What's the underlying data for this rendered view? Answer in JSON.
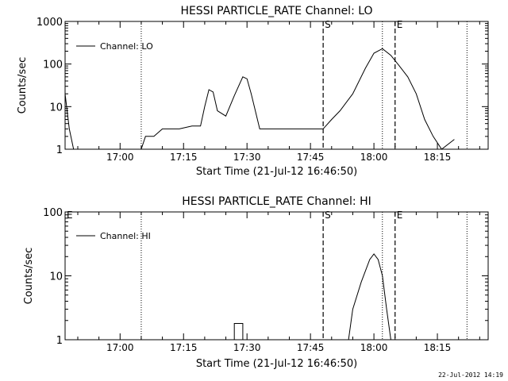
{
  "timestamp": "22-Jul-2012 14:19",
  "chart_data": [
    {
      "type": "line",
      "title": "HESSI PARTICLE_RATE Channel: LO",
      "xlabel": "Start Time (21-Jul-12 16:46:50)",
      "ylabel": "Counts/sec",
      "y_scale": "log",
      "ylim": [
        1,
        1000
      ],
      "y_ticks": [
        {
          "v": 1,
          "label": "1"
        },
        {
          "v": 10,
          "label": "10"
        },
        {
          "v": 100,
          "label": "100"
        },
        {
          "v": 1000,
          "label": "1000"
        }
      ],
      "xlim": [
        "16:47",
        "18:27"
      ],
      "x_ticks": [
        "17:00",
        "17:15",
        "17:30",
        "17:45",
        "18:00",
        "18:15"
      ],
      "legend": {
        "label": "Channel: LO",
        "placement": "top-left"
      },
      "markers": [
        {
          "time": "17:48",
          "label": "S",
          "style": "dashed"
        },
        {
          "time": "18:05",
          "label": "E",
          "style": "dashed"
        },
        {
          "time": "17:05",
          "label": "",
          "style": "dotted"
        },
        {
          "time": "18:02",
          "label": "",
          "style": "dotted"
        },
        {
          "time": "18:22",
          "label": "",
          "style": "dotted"
        }
      ],
      "series": [
        {
          "name": "Channel: LO",
          "points": [
            [
              "16:47",
              20
            ],
            [
              "16:48",
              3
            ],
            [
              "16:49",
              1
            ],
            [
              "16:50",
              1
            ],
            [
              "16:52",
              1
            ],
            [
              "16:55",
              1
            ],
            [
              "16:57",
              1
            ],
            [
              "17:05",
              1
            ],
            [
              "17:06",
              2
            ],
            [
              "17:08",
              2
            ],
            [
              "17:10",
              3
            ],
            [
              "17:14",
              3
            ],
            [
              "17:17",
              3.5
            ],
            [
              "17:19",
              3.5
            ],
            [
              "17:20",
              10
            ],
            [
              "17:21",
              25
            ],
            [
              "17:22",
              22
            ],
            [
              "17:23",
              8
            ],
            [
              "17:25",
              6
            ],
            [
              "17:27",
              18
            ],
            [
              "17:29",
              50
            ],
            [
              "17:30",
              45
            ],
            [
              "17:31",
              20
            ],
            [
              "17:33",
              3
            ],
            [
              "17:36",
              3
            ],
            [
              "17:40",
              3
            ],
            [
              "17:44",
              3
            ],
            [
              "17:48",
              3
            ],
            [
              "17:50",
              5
            ],
            [
              "17:52",
              8
            ],
            [
              "17:55",
              20
            ],
            [
              "17:58",
              80
            ],
            [
              "18:00",
              180
            ],
            [
              "18:02",
              230
            ],
            [
              "18:04",
              160
            ],
            [
              "18:06",
              90
            ],
            [
              "18:08",
              50
            ],
            [
              "18:10",
              20
            ],
            [
              "18:12",
              5
            ],
            [
              "18:14",
              2
            ],
            [
              "18:16",
              1
            ],
            [
              "18:19",
              1.7
            ]
          ]
        }
      ]
    },
    {
      "type": "line",
      "title": "HESSI PARTICLE_RATE Channel: HI",
      "xlabel": "Start Time (21-Jul-12 16:46:50)",
      "ylabel": "Counts/sec",
      "y_scale": "log",
      "ylim": [
        1,
        100
      ],
      "y_ticks": [
        {
          "v": 1,
          "label": "1"
        },
        {
          "v": 10,
          "label": "10"
        },
        {
          "v": 100,
          "label": "100"
        }
      ],
      "xlim": [
        "16:47",
        "18:27"
      ],
      "x_ticks": [
        "17:00",
        "17:15",
        "17:30",
        "17:45",
        "18:00",
        "18:15"
      ],
      "legend": {
        "label": "Channel: HI",
        "placement": "top-left"
      },
      "markers": [
        {
          "time": "16:47",
          "label": "E",
          "style": "none"
        },
        {
          "time": "17:48",
          "label": "S",
          "style": "dashed"
        },
        {
          "time": "18:05",
          "label": "E",
          "style": "dashed"
        },
        {
          "time": "17:05",
          "label": "",
          "style": "dotted"
        },
        {
          "time": "18:02",
          "label": "",
          "style": "dotted"
        },
        {
          "time": "18:22",
          "label": "",
          "style": "dotted"
        }
      ],
      "series": [
        {
          "name": "Channel: HI",
          "points": [
            [
              "17:27",
              1
            ],
            [
              "17:27",
              1.8
            ],
            [
              "17:29",
              1.8
            ],
            [
              "17:29",
              1
            ],
            [
              "17:54",
              1
            ],
            [
              "17:55",
              3
            ],
            [
              "17:57",
              8
            ],
            [
              "17:59",
              18
            ],
            [
              "18:00",
              22
            ],
            [
              "18:01",
              18
            ],
            [
              "18:02",
              10
            ],
            [
              "18:03",
              3
            ],
            [
              "18:04",
              1
            ]
          ]
        }
      ]
    }
  ]
}
